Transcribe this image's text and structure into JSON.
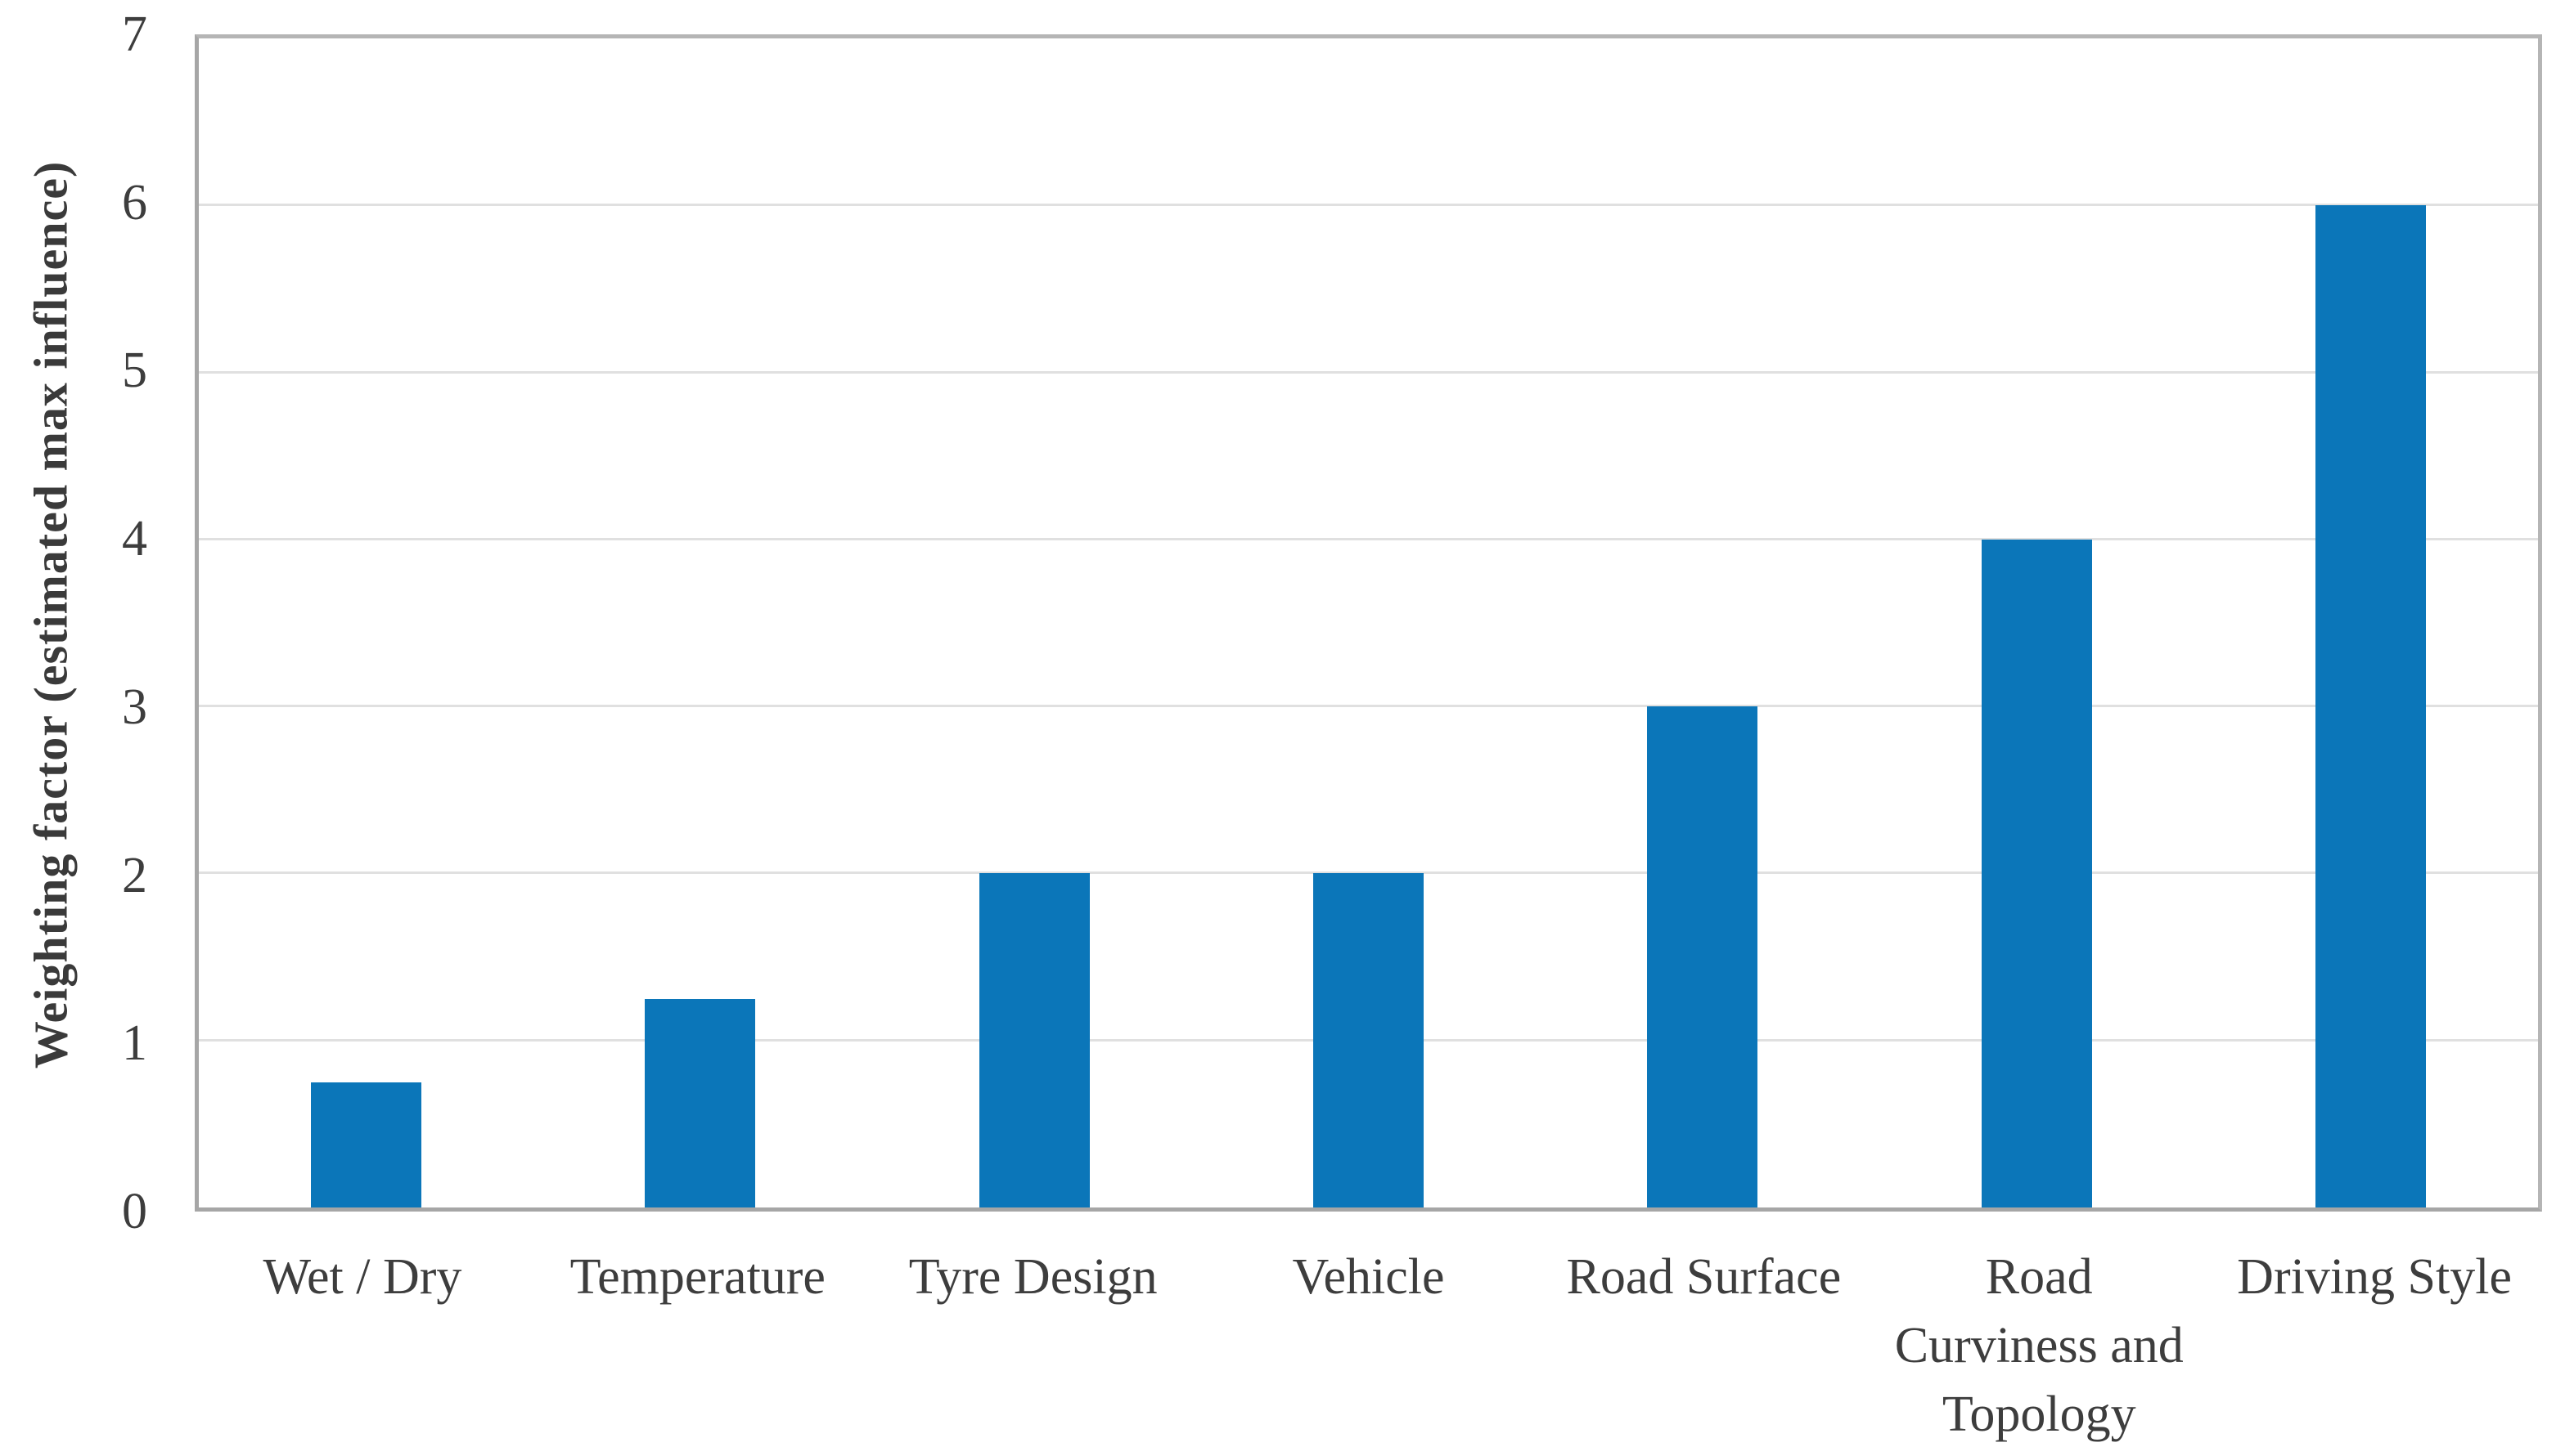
{
  "chart_data": {
    "type": "bar",
    "title": "",
    "xlabel": "",
    "ylabel": "Weighting factor (estimated max influence)",
    "categories": [
      "Wet / Dry",
      "Temperature",
      "Tyre Design",
      "Vehicle",
      "Road Surface",
      "Road Curviness and Topology",
      "Driving Style"
    ],
    "values": [
      0.75,
      1.25,
      2,
      2,
      3,
      4,
      6
    ],
    "x_label_lines": [
      [
        "Wet / Dry"
      ],
      [
        "Temperature"
      ],
      [
        "Tyre Design"
      ],
      [
        "Vehicle"
      ],
      [
        "Road Surface"
      ],
      [
        "Road",
        "Curviness and",
        "Topology"
      ],
      [
        "Driving Style"
      ]
    ],
    "ylim": [
      0,
      7
    ],
    "yticks": [
      0,
      1,
      2,
      3,
      4,
      5,
      6,
      7
    ],
    "grid": "horizontal",
    "legend": "none",
    "bar_color": "#0b76b9",
    "gridline_color": "#e0e0e0",
    "axis_color": "#a6a6a6",
    "text_color": "#3d3d3d"
  }
}
